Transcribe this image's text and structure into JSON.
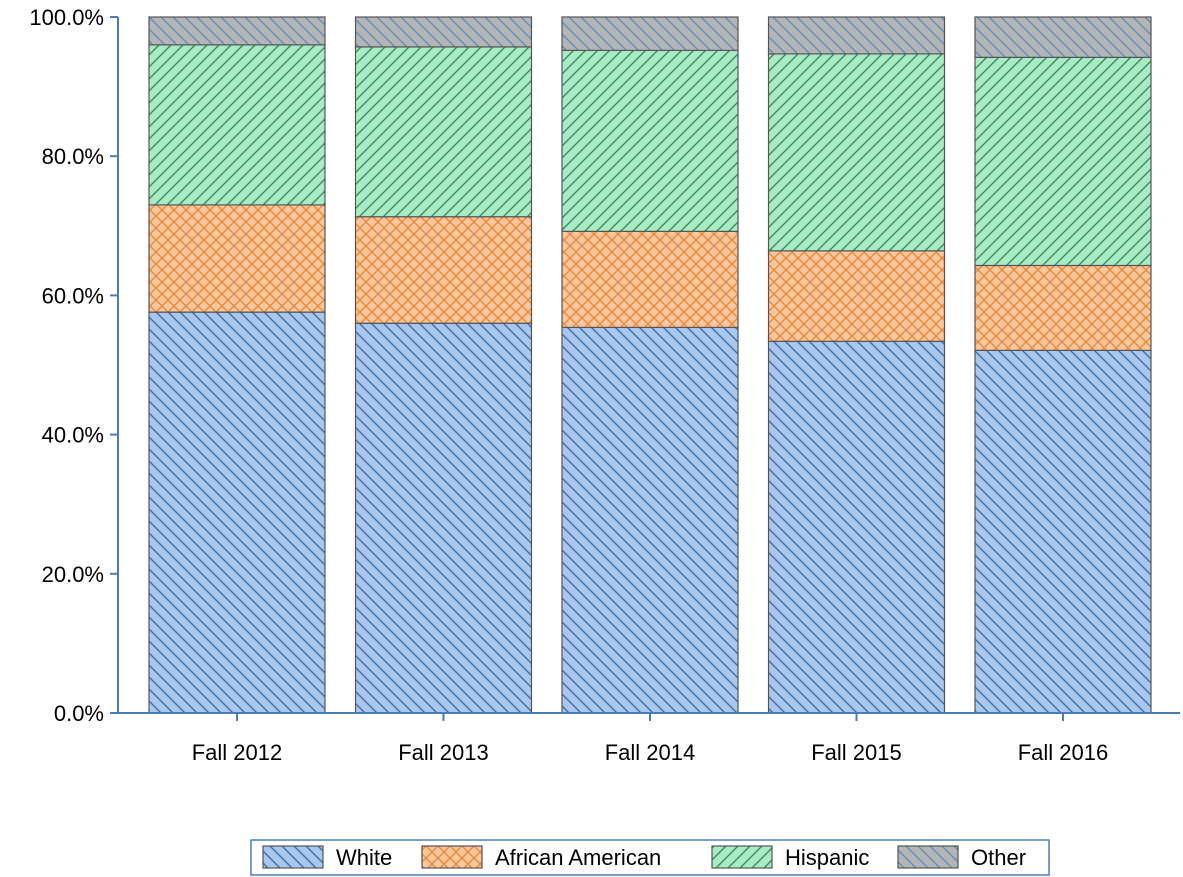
{
  "chart_data": {
    "type": "bar",
    "stacked": true,
    "categories": [
      "Fall 2012",
      "Fall 2013",
      "Fall 2014",
      "Fall 2015",
      "Fall 2016"
    ],
    "series": [
      {
        "name": "White",
        "values": [
          57.6,
          56.0,
          55.4,
          53.4,
          52.1
        ],
        "color": "#a9c6ee",
        "pattern": "diagonal-down",
        "pattern_color": "#3d6fa6"
      },
      {
        "name": "African American",
        "values": [
          15.4,
          15.3,
          13.8,
          13.0,
          12.2
        ],
        "color": "#f8c79e",
        "pattern": "crosshatch",
        "pattern_color": "#e88a3a"
      },
      {
        "name": "Hispanic",
        "values": [
          23.0,
          24.4,
          26.0,
          28.3,
          29.9
        ],
        "color": "#a9ebc4",
        "pattern": "diagonal-up",
        "pattern_color": "#3c8a5c"
      },
      {
        "name": "Other",
        "values": [
          4.0,
          4.3,
          4.8,
          5.3,
          5.8
        ],
        "color": "#b5b5b5",
        "pattern": "diagonal-down",
        "pattern_color": "#5e8fbf"
      }
    ],
    "yticks": [
      "0.0%",
      "20.0%",
      "40.0%",
      "60.0%",
      "80.0%",
      "100.0%"
    ],
    "ylim": [
      0,
      100
    ],
    "grid": false,
    "legend_position": "bottom",
    "title": "",
    "xlabel": "",
    "ylabel": ""
  }
}
